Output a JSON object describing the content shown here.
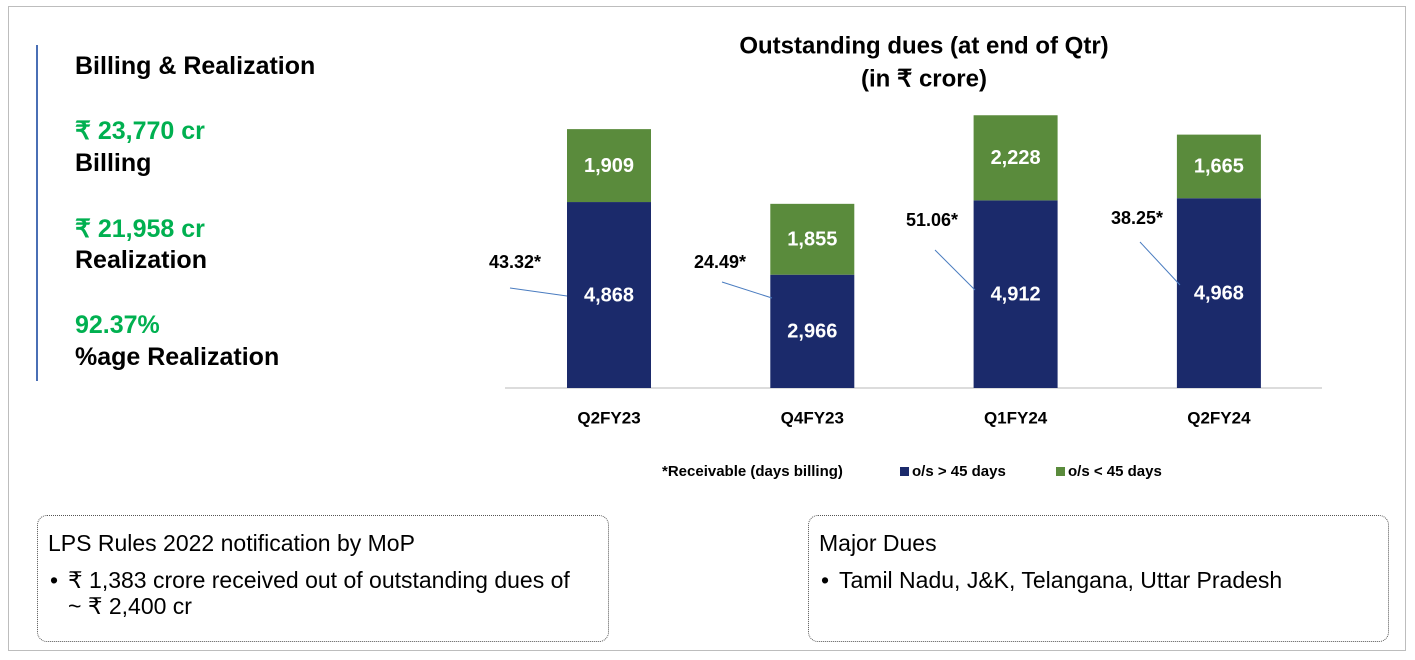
{
  "panel": {
    "title": "Billing & Realization",
    "metrics": [
      {
        "value": "₹ 23,770 cr",
        "label": "Billing"
      },
      {
        "value": "₹ 21,958 cr",
        "label": "Realization"
      },
      {
        "value": "92.37%",
        "label": "%age Realization"
      }
    ]
  },
  "chart_data": {
    "type": "stacked-bar",
    "title": "Outstanding dues (at end of Qtr)",
    "subtitle": "(in ₹ crore)",
    "categories": [
      "Q2FY23",
      "Q4FY23",
      "Q1FY24",
      "Q2FY24"
    ],
    "series": [
      {
        "name": "o/s > 45 days",
        "color": "#1b2a6b",
        "values": [
          4868,
          2966,
          4912,
          4968
        ],
        "value_labels": [
          "4,868",
          "2,966",
          "4,912",
          "4,968"
        ]
      },
      {
        "name": "o/s < 45 days",
        "color": "#5a8b3c",
        "values": [
          1909,
          1855,
          2228,
          1665
        ],
        "value_labels": [
          "1,909",
          "1,855",
          "2,228",
          "1,665"
        ]
      }
    ],
    "annotation_note": "*Receivable (days billing)",
    "annotations": [
      "43.32*",
      "24.49*",
      "51.06*",
      "38.25*"
    ],
    "ylim": [
      0,
      7500
    ]
  },
  "boxes": [
    {
      "title": "LPS Rules 2022 notification by MoP",
      "bullets": [
        "₹ 1,383 crore received out of outstanding dues of ~ ₹ 2,400 cr"
      ]
    },
    {
      "title": "Major Dues",
      "bullets": [
        "Tamil Nadu, J&K, Telangana, Uttar Pradesh"
      ]
    }
  ]
}
